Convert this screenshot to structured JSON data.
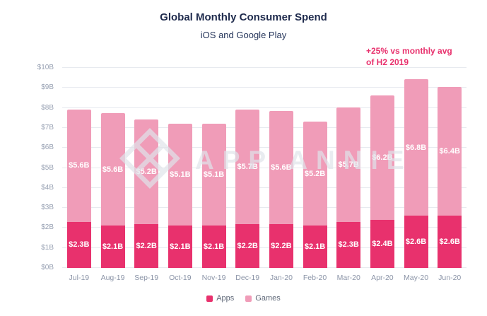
{
  "header": {
    "title": "Global Monthly Consumer Spend",
    "subtitle": "iOS and Google Play"
  },
  "annotation": {
    "text": "+25% vs monthly avg of H2 2019"
  },
  "watermark": {
    "text": "APP ANNIE"
  },
  "legend": {
    "items": [
      {
        "label": "Apps",
        "color": "#e8316d"
      },
      {
        "label": "Games",
        "color": "#f09cb8"
      }
    ]
  },
  "chart_data": {
    "type": "bar",
    "stacked": true,
    "title": "Global Monthly Consumer Spend",
    "subtitle": "iOS and Google Play",
    "categories": [
      "Jul-19",
      "Aug-19",
      "Sep-19",
      "Oct-19",
      "Nov-19",
      "Dec-19",
      "Jan-20",
      "Feb-20",
      "Mar-20",
      "Apr-20",
      "May-20",
      "Jun-20"
    ],
    "series": [
      {
        "name": "Apps",
        "color": "#e8316d",
        "values": [
          2.3,
          2.1,
          2.2,
          2.1,
          2.1,
          2.2,
          2.2,
          2.1,
          2.3,
          2.4,
          2.6,
          2.6
        ],
        "labels": [
          "$2.3B",
          "$2.1B",
          "$2.2B",
          "$2.1B",
          "$2.1B",
          "$2.2B",
          "$2.2B",
          "$2.1B",
          "$2.3B",
          "$2.4B",
          "$2.6B",
          "$2.6B"
        ]
      },
      {
        "name": "Games",
        "color": "#f09cb8",
        "values": [
          5.6,
          5.6,
          5.2,
          5.1,
          5.1,
          5.7,
          5.6,
          5.2,
          5.7,
          6.2,
          6.8,
          6.4
        ],
        "labels": [
          "$5.6B",
          "$5.6B",
          "$5.2B",
          "$5.1B",
          "$5.1B",
          "$5.7B",
          "$5.6B",
          "$5.2B",
          "$5.7B",
          "$6.2B",
          "$6.8B",
          "$6.4B"
        ]
      }
    ],
    "ylim": [
      0,
      10
    ],
    "ytick_labels": [
      "$0B",
      "$1B",
      "$2B",
      "$3B",
      "$4B",
      "$5B",
      "$6B",
      "$7B",
      "$8B",
      "$9B",
      "$10B"
    ],
    "grid": true,
    "legend_position": "bottom",
    "annotation": "+25% vs monthly avg of H2 2019"
  }
}
